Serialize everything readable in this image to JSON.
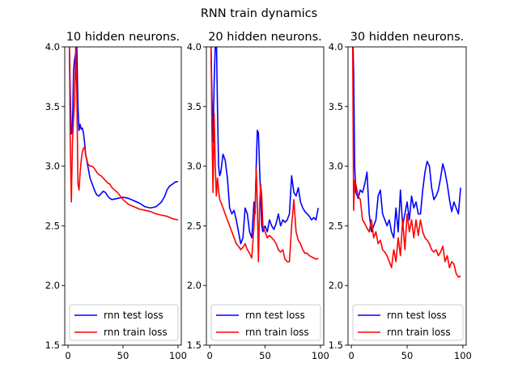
{
  "figure": {
    "suptitle": "RNN train dynamics"
  },
  "colors": {
    "test": "#0000ff",
    "train": "#ff0000"
  },
  "chart_data": [
    {
      "type": "line",
      "title": "10 hidden neurons.",
      "xlim": [
        -3,
        103
      ],
      "ylim": [
        1.5,
        4.0
      ],
      "xticks": [
        0,
        50,
        100
      ],
      "yticks": [
        1.5,
        2.0,
        2.5,
        3.0,
        3.5,
        4.0
      ],
      "legend": "bottom",
      "series": [
        {
          "name": "rnn test loss",
          "color": "#0000ff",
          "x": [
            1,
            2,
            3,
            4,
            5,
            6,
            7,
            8,
            9,
            10,
            11,
            12,
            13,
            14,
            15,
            16,
            18,
            20,
            22,
            24,
            26,
            28,
            30,
            32,
            34,
            36,
            38,
            40,
            45,
            50,
            55,
            60,
            65,
            70,
            75,
            80,
            85,
            88,
            90,
            92,
            95,
            98,
            100
          ],
          "y": [
            4.1,
            3.6,
            3.27,
            3.3,
            3.8,
            3.9,
            3.95,
            4.0,
            3.5,
            3.3,
            3.35,
            3.31,
            3.32,
            3.28,
            3.2,
            3.1,
            3.0,
            2.9,
            2.85,
            2.8,
            2.76,
            2.75,
            2.77,
            2.79,
            2.78,
            2.75,
            2.73,
            2.72,
            2.73,
            2.74,
            2.73,
            2.71,
            2.69,
            2.66,
            2.65,
            2.66,
            2.7,
            2.75,
            2.8,
            2.83,
            2.85,
            2.87,
            2.87
          ]
        },
        {
          "name": "rnn train loss",
          "color": "#ff0000",
          "x": [
            1,
            2,
            3,
            4,
            5,
            6,
            7,
            8,
            9,
            10,
            11,
            12,
            13,
            14,
            15,
            16,
            18,
            20,
            22,
            24,
            26,
            28,
            30,
            32,
            34,
            36,
            38,
            40,
            45,
            50,
            55,
            60,
            65,
            70,
            75,
            80,
            85,
            90,
            95,
            100
          ],
          "y": [
            4.3,
            3.2,
            2.7,
            3.2,
            3.4,
            3.55,
            4.0,
            3.6,
            2.85,
            2.8,
            2.95,
            3.05,
            3.12,
            3.15,
            3.16,
            3.1,
            3.02,
            3.0,
            3.0,
            2.98,
            2.95,
            2.93,
            2.92,
            2.9,
            2.88,
            2.86,
            2.85,
            2.82,
            2.78,
            2.72,
            2.68,
            2.66,
            2.64,
            2.63,
            2.62,
            2.6,
            2.59,
            2.58,
            2.56,
            2.55
          ]
        }
      ]
    },
    {
      "type": "line",
      "title": "20 hidden neurons.",
      "xlim": [
        -3,
        103
      ],
      "ylim": [
        1.5,
        4.0
      ],
      "xticks": [
        0,
        50,
        100
      ],
      "yticks": [
        1.5,
        2.0,
        2.5,
        3.0,
        3.5,
        4.0
      ],
      "legend": "bottom",
      "series": [
        {
          "name": "rnn test loss",
          "color": "#0000ff",
          "x": [
            1,
            2,
            3,
            4,
            5,
            6,
            7,
            8,
            9,
            10,
            12,
            14,
            16,
            18,
            20,
            22,
            24,
            26,
            28,
            30,
            32,
            34,
            36,
            38,
            40,
            41,
            42,
            43,
            44,
            45,
            46,
            47,
            48,
            50,
            52,
            54,
            56,
            58,
            60,
            62,
            64,
            66,
            68,
            70,
            72,
            74,
            76,
            78,
            80,
            82,
            84,
            86,
            88,
            90,
            92,
            94,
            96,
            98
          ],
          "y": [
            4.1,
            3.6,
            3.2,
            3.7,
            4.0,
            4.1,
            3.5,
            3.0,
            2.92,
            2.95,
            3.1,
            3.05,
            2.9,
            2.65,
            2.6,
            2.63,
            2.55,
            2.45,
            2.35,
            2.4,
            2.65,
            2.6,
            2.45,
            2.4,
            2.7,
            2.6,
            3.0,
            3.3,
            3.28,
            3.0,
            2.75,
            2.5,
            2.45,
            2.5,
            2.45,
            2.55,
            2.5,
            2.47,
            2.52,
            2.6,
            2.5,
            2.55,
            2.53,
            2.55,
            2.6,
            2.92,
            2.78,
            2.75,
            2.82,
            2.7,
            2.65,
            2.62,
            2.6,
            2.58,
            2.55,
            2.57,
            2.55,
            2.65
          ]
        },
        {
          "name": "rnn train loss",
          "color": "#ff0000",
          "x": [
            1,
            2,
            3,
            4,
            5,
            6,
            7,
            8,
            9,
            10,
            12,
            14,
            16,
            18,
            20,
            22,
            24,
            26,
            28,
            30,
            32,
            34,
            36,
            38,
            40,
            41,
            42,
            43,
            44,
            45,
            46,
            47,
            48,
            50,
            52,
            54,
            56,
            58,
            60,
            62,
            64,
            66,
            68,
            70,
            72,
            74,
            76,
            78,
            80,
            82,
            84,
            86,
            88,
            90,
            92,
            94,
            96,
            98
          ],
          "y": [
            4.2,
            3.3,
            2.78,
            3.44,
            3.0,
            2.75,
            2.9,
            2.8,
            2.72,
            2.7,
            2.65,
            2.6,
            2.55,
            2.5,
            2.45,
            2.4,
            2.35,
            2.33,
            2.3,
            2.32,
            2.35,
            2.3,
            2.27,
            2.23,
            2.5,
            2.65,
            2.98,
            2.7,
            2.2,
            2.65,
            2.85,
            2.75,
            2.5,
            2.45,
            2.4,
            2.42,
            2.4,
            2.38,
            2.35,
            2.3,
            2.28,
            2.3,
            2.22,
            2.2,
            2.2,
            2.5,
            2.72,
            2.45,
            2.38,
            2.35,
            2.3,
            2.27,
            2.27,
            2.25,
            2.24,
            2.23,
            2.22,
            2.23
          ]
        }
      ]
    },
    {
      "type": "line",
      "title": "30 hidden neurons.",
      "xlim": [
        -3,
        103
      ],
      "ylim": [
        1.5,
        4.0
      ],
      "xticks": [
        0,
        50,
        100
      ],
      "yticks": [
        1.5,
        2.0,
        2.5,
        3.0,
        3.5,
        4.0
      ],
      "legend": "bottom",
      "series": [
        {
          "name": "rnn test loss",
          "color": "#0000ff",
          "x": [
            1,
            2,
            3,
            4,
            5,
            6,
            8,
            10,
            12,
            14,
            16,
            18,
            20,
            22,
            24,
            26,
            28,
            30,
            32,
            34,
            36,
            38,
            40,
            42,
            44,
            46,
            48,
            50,
            52,
            54,
            56,
            58,
            60,
            62,
            64,
            66,
            68,
            70,
            72,
            74,
            76,
            78,
            80,
            82,
            84,
            86,
            88,
            90,
            92,
            94,
            96,
            98
          ],
          "y": [
            4.2,
            3.8,
            3.0,
            2.78,
            2.76,
            2.73,
            2.8,
            2.78,
            2.85,
            2.95,
            2.6,
            2.45,
            2.5,
            2.55,
            2.75,
            2.8,
            2.6,
            2.55,
            2.5,
            2.55,
            2.45,
            2.4,
            2.65,
            2.45,
            2.8,
            2.5,
            2.6,
            2.7,
            2.55,
            2.75,
            2.65,
            2.7,
            2.6,
            2.6,
            2.8,
            2.95,
            3.04,
            3.0,
            2.82,
            2.72,
            2.75,
            2.8,
            2.9,
            3.02,
            2.95,
            2.85,
            2.72,
            2.62,
            2.7,
            2.65,
            2.6,
            2.82
          ]
        },
        {
          "name": "rnn train loss",
          "color": "#ff0000",
          "x": [
            1,
            2,
            3,
            4,
            5,
            6,
            8,
            10,
            12,
            14,
            16,
            18,
            20,
            22,
            24,
            26,
            28,
            30,
            32,
            34,
            36,
            38,
            40,
            42,
            44,
            46,
            48,
            50,
            52,
            54,
            56,
            58,
            60,
            62,
            64,
            66,
            68,
            70,
            72,
            74,
            76,
            78,
            80,
            82,
            84,
            86,
            88,
            90,
            92,
            94,
            96,
            98
          ],
          "y": [
            4.3,
            2.63,
            2.88,
            2.85,
            2.8,
            2.75,
            2.72,
            2.55,
            2.52,
            2.48,
            2.45,
            2.55,
            2.4,
            2.45,
            2.35,
            2.38,
            2.3,
            2.28,
            2.25,
            2.2,
            2.15,
            2.3,
            2.2,
            2.4,
            2.25,
            2.55,
            2.3,
            2.6,
            2.45,
            2.55,
            2.4,
            2.55,
            2.42,
            2.55,
            2.45,
            2.4,
            2.38,
            2.35,
            2.3,
            2.28,
            2.3,
            2.25,
            2.28,
            2.33,
            2.2,
            2.25,
            2.15,
            2.2,
            2.18,
            2.1,
            2.07,
            2.08
          ]
        }
      ]
    }
  ]
}
